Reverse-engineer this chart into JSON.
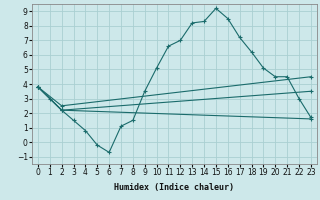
{
  "xlabel": "Humidex (Indice chaleur)",
  "xlim": [
    -0.5,
    23.5
  ],
  "ylim": [
    -1.5,
    9.5
  ],
  "xticks": [
    0,
    1,
    2,
    3,
    4,
    5,
    6,
    7,
    8,
    9,
    10,
    11,
    12,
    13,
    14,
    15,
    16,
    17,
    18,
    19,
    20,
    21,
    22,
    23
  ],
  "yticks": [
    -1,
    0,
    1,
    2,
    3,
    4,
    5,
    6,
    7,
    8,
    9
  ],
  "bg_color": "#cde8ea",
  "grid_color": "#aacfd2",
  "line_color": "#1a6b6b",
  "line1_x": [
    0,
    1,
    2,
    3,
    4,
    5,
    6,
    7,
    8,
    9,
    10,
    11,
    12,
    13,
    14,
    15,
    16,
    17,
    18,
    19,
    20,
    21,
    22,
    23
  ],
  "line1_y": [
    3.8,
    3.0,
    2.2,
    1.5,
    0.8,
    -0.2,
    -0.7,
    1.1,
    1.5,
    3.5,
    5.1,
    6.6,
    7.0,
    8.2,
    8.3,
    9.2,
    8.5,
    7.2,
    6.2,
    5.1,
    4.5,
    4.5,
    3.0,
    1.7
  ],
  "line2_x": [
    0,
    2,
    23
  ],
  "line2_y": [
    3.8,
    2.2,
    1.6
  ],
  "line3_x": [
    0,
    2,
    23
  ],
  "line3_y": [
    3.8,
    2.2,
    3.5
  ],
  "line4_x": [
    0,
    2,
    23
  ],
  "line4_y": [
    3.8,
    2.5,
    4.5
  ]
}
